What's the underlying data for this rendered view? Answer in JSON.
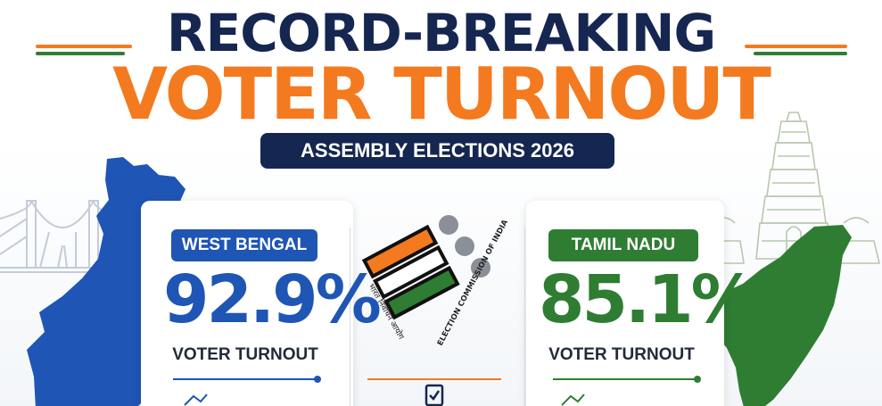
{
  "title": {
    "line1": "RECORD-BREAKING",
    "line2": "VOTER TURNOUT",
    "subtitle": "ASSEMBLY ELECTIONS 2026"
  },
  "states": [
    {
      "name": "WEST BENGAL",
      "turnout": "92.9%",
      "label": "VOTER TURNOUT",
      "color": "#1f55b4"
    },
    {
      "name": "TAMIL NADU",
      "turnout": "85.1%",
      "label": "VOTER TURNOUT",
      "color": "#2e7d32"
    }
  ],
  "logo": {
    "hindi_text": "भारत निर्वाचन आयोग",
    "english_text": "ELECTION COMMISSION OF INDIA"
  },
  "colors": {
    "navy": "#152650",
    "saffron": "#f47a1f",
    "blue": "#1f55b4",
    "green": "#2e7d32"
  },
  "icons": [
    "bridge-icon",
    "west-bengal-map-icon",
    "tamil-nadu-map-icon",
    "temple-icon",
    "eci-logo-icon",
    "ballot-check-icon"
  ]
}
